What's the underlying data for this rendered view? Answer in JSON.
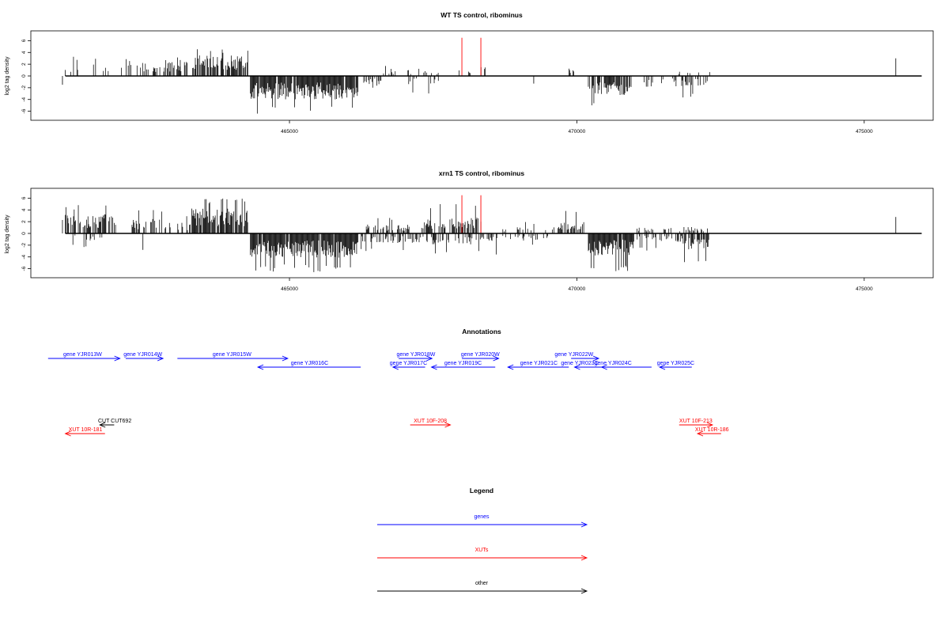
{
  "chart_data": [
    {
      "type": "bar",
      "title": "WT TS control, ribominus",
      "xlabel": "",
      "ylabel": "log2 tag density",
      "xlim": [
        460500,
        476200
      ],
      "ylim": [
        -7,
        7
      ],
      "x_ticks": [
        465000,
        470000,
        475000
      ],
      "x_tick_labels": [
        "465000",
        "470000",
        "475000"
      ],
      "y_ticks": [
        6,
        4,
        2,
        0,
        -2,
        -4,
        -6
      ],
      "y_tick_labels": [
        "6",
        "4",
        "2",
        "0",
        "-2",
        "-4",
        "-6"
      ],
      "line_span": [
        461100,
        476000
      ],
      "red_markers": [
        {
          "x": 468000,
          "value": 6.5
        },
        {
          "x": 468330,
          "value": 6.5
        }
      ],
      "signal_segments": [
        {
          "start": 461050,
          "end": 461650,
          "strand": "+",
          "mean": 2.0,
          "max": 3.3,
          "density": 0.22
        },
        {
          "start": 461750,
          "end": 462250,
          "strand": "+",
          "mean": 1.6,
          "max": 3.0,
          "density": 0.14
        },
        {
          "start": 462300,
          "end": 462800,
          "strand": "+",
          "mean": 1.9,
          "max": 3.3,
          "density": 0.24
        },
        {
          "start": 462800,
          "end": 463350,
          "strand": "+",
          "mean": 2.1,
          "max": 3.2,
          "density": 0.5
        },
        {
          "start": 463350,
          "end": 464280,
          "strand": "+",
          "mean": 2.8,
          "max": 4.7,
          "density": 0.75
        },
        {
          "start": 464320,
          "end": 466200,
          "strand": "-",
          "mean": 3.2,
          "max": 6.5,
          "density": 0.95
        },
        {
          "start": 466280,
          "end": 466600,
          "strand": "-",
          "mean": 1.2,
          "max": 2.0,
          "density": 0.4
        },
        {
          "start": 466600,
          "end": 466850,
          "strand": "+",
          "mean": 1.0,
          "max": 1.8,
          "density": 0.3
        },
        {
          "start": 467050,
          "end": 467700,
          "strand": "-",
          "mean": 1.2,
          "max": 3.0,
          "density": 0.2
        },
        {
          "start": 467000,
          "end": 467600,
          "strand": "+",
          "mean": 0.8,
          "max": 1.5,
          "density": 0.15
        },
        {
          "start": 467950,
          "end": 468450,
          "strand": "+",
          "mean": 1.2,
          "max": 2.2,
          "density": 0.15
        },
        {
          "start": 469850,
          "end": 470000,
          "strand": "+",
          "mean": 1.2,
          "max": 2.4,
          "density": 0.4
        },
        {
          "start": 470200,
          "end": 470950,
          "strand": "-",
          "mean": 2.6,
          "max": 5.8,
          "density": 0.7
        },
        {
          "start": 471100,
          "end": 471350,
          "strand": "-",
          "mean": 1.5,
          "max": 3.5,
          "density": 0.4
        },
        {
          "start": 471450,
          "end": 471750,
          "strand": "-",
          "mean": 1.0,
          "max": 2.0,
          "density": 0.3
        },
        {
          "start": 471800,
          "end": 472300,
          "strand": "-",
          "mean": 1.4,
          "max": 3.8,
          "density": 0.4
        },
        {
          "start": 471750,
          "end": 472350,
          "strand": "+",
          "mean": 0.6,
          "max": 1.6,
          "density": 0.15
        }
      ],
      "single_bars": [
        {
          "x": 461050,
          "value": -1.5
        },
        {
          "x": 466670,
          "value": 1.7
        },
        {
          "x": 469250,
          "value": -1.3
        },
        {
          "x": 475550,
          "value": 3.0
        }
      ]
    },
    {
      "type": "bar",
      "title": "xrn1 TS control, ribominus",
      "xlabel": "",
      "ylabel": "log2 tag density",
      "xlim": [
        460500,
        476200
      ],
      "ylim": [
        -7,
        7
      ],
      "x_ticks": [
        465000,
        470000,
        475000
      ],
      "x_tick_labels": [
        "465000",
        "470000",
        "475000"
      ],
      "y_ticks": [
        6,
        4,
        2,
        0,
        -2,
        -4,
        -6
      ],
      "y_tick_labels": [
        "6",
        "4",
        "2",
        "0",
        "-2",
        "-4",
        "-6"
      ],
      "line_span": [
        461100,
        476000
      ],
      "red_markers": [
        {
          "x": 468000,
          "value": 6.5
        },
        {
          "x": 468330,
          "value": 6.5
        }
      ],
      "signal_segments": [
        {
          "start": 461050,
          "end": 462000,
          "strand": "+",
          "mean": 2.6,
          "max": 4.9,
          "density": 0.6
        },
        {
          "start": 461100,
          "end": 461800,
          "strand": "-",
          "mean": 1.0,
          "max": 2.4,
          "density": 0.2
        },
        {
          "start": 462200,
          "end": 462900,
          "strand": "+",
          "mean": 2.0,
          "max": 4.0,
          "density": 0.4
        },
        {
          "start": 462900,
          "end": 463300,
          "strand": "+",
          "mean": 1.5,
          "max": 3.0,
          "density": 0.3
        },
        {
          "start": 463300,
          "end": 464280,
          "strand": "+",
          "mean": 3.4,
          "max": 6.4,
          "density": 0.85
        },
        {
          "start": 464320,
          "end": 466200,
          "strand": "-",
          "mean": 3.3,
          "max": 6.6,
          "density": 0.95
        },
        {
          "start": 466200,
          "end": 467300,
          "strand": "-",
          "mean": 1.3,
          "max": 3.0,
          "density": 0.4
        },
        {
          "start": 466300,
          "end": 467100,
          "strand": "+",
          "mean": 1.2,
          "max": 2.8,
          "density": 0.4
        },
        {
          "start": 467300,
          "end": 468350,
          "strand": "+",
          "mean": 2.2,
          "max": 5.0,
          "density": 0.5
        },
        {
          "start": 467300,
          "end": 468700,
          "strand": "-",
          "mean": 1.5,
          "max": 3.6,
          "density": 0.4
        },
        {
          "start": 468700,
          "end": 469500,
          "strand": "-",
          "mean": 1.0,
          "max": 2.2,
          "density": 0.3
        },
        {
          "start": 468700,
          "end": 469700,
          "strand": "+",
          "mean": 0.9,
          "max": 2.0,
          "density": 0.25
        },
        {
          "start": 469700,
          "end": 470150,
          "strand": "+",
          "mean": 1.6,
          "max": 4.4,
          "density": 0.5
        },
        {
          "start": 470200,
          "end": 471000,
          "strand": "-",
          "mean": 3.0,
          "max": 6.8,
          "density": 0.9
        },
        {
          "start": 471050,
          "end": 471850,
          "strand": "-",
          "mean": 1.2,
          "max": 3.0,
          "density": 0.4
        },
        {
          "start": 471000,
          "end": 472300,
          "strand": "+",
          "mean": 0.9,
          "max": 2.6,
          "density": 0.25
        },
        {
          "start": 471850,
          "end": 472300,
          "strand": "-",
          "mean": 2.2,
          "max": 5.0,
          "density": 0.8
        }
      ],
      "single_bars": [
        {
          "x": 462450,
          "value": -2.8
        },
        {
          "x": 475550,
          "value": 2.8
        }
      ]
    }
  ],
  "annotations": {
    "title": "Annotations",
    "xlim": [
      460500,
      476200
    ],
    "items": [
      {
        "label": "gene YJR013W",
        "start": 460800,
        "end": 462050,
        "strand": "+",
        "row": 1,
        "color": "#0000ff",
        "label_x": 461400
      },
      {
        "label": "gene YJR014W",
        "start": 462150,
        "end": 462800,
        "strand": "+",
        "row": 1,
        "color": "#0000ff",
        "label_x": 462450
      },
      {
        "label": "gene YJR015W",
        "start": 463050,
        "end": 464970,
        "strand": "+",
        "row": 1,
        "color": "#0000ff",
        "label_x": 464000
      },
      {
        "label": "gene YJR016C",
        "start": 464450,
        "end": 466240,
        "strand": "-",
        "row": 2,
        "color": "#0000ff",
        "label_x": 465350
      },
      {
        "label": "gene YJR017C",
        "start": 466800,
        "end": 467360,
        "strand": "-",
        "row": 2,
        "color": "#0000ff",
        "label_x": 467070
      },
      {
        "label": "gene YJR018W",
        "start": 466900,
        "end": 467480,
        "strand": "+",
        "row": 1,
        "color": "#0000ff",
        "label_x": 467200
      },
      {
        "label": "gene YJR019C",
        "start": 467470,
        "end": 468580,
        "strand": "-",
        "row": 2,
        "color": "#0000ff",
        "label_x": 468020
      },
      {
        "label": "gene YJR020W",
        "start": 468000,
        "end": 468640,
        "strand": "+",
        "row": 1,
        "color": "#0000ff",
        "label_x": 468320
      },
      {
        "label": "gene YJR021C",
        "start": 468800,
        "end": 469860,
        "strand": "-",
        "row": 2,
        "color": "#0000ff",
        "label_x": 469340
      },
      {
        "label": "gene YJR022W",
        "start": 469900,
        "end": 470380,
        "strand": "+",
        "row": 1,
        "color": "#0000ff",
        "label_x": 469950
      },
      {
        "label": "gene YJR023C",
        "start": 469960,
        "end": 470430,
        "strand": "-",
        "row": 2,
        "color": "#0000ff",
        "label_x": 470050
      },
      {
        "label": "gene YJR024C",
        "start": 470430,
        "end": 471300,
        "strand": "-",
        "row": 2,
        "color": "#0000ff",
        "label_x": 470630
      },
      {
        "label": "gene YJR025C",
        "start": 471440,
        "end": 472000,
        "strand": "-",
        "row": 2,
        "color": "#0000ff",
        "label_x": 471720
      },
      {
        "label": "CUT CUT692",
        "start": 461700,
        "end": 461950,
        "strand": "-",
        "row": 3,
        "color": "#000000",
        "label_x": 461960
      },
      {
        "label": "XUT 10R-181",
        "start": 461100,
        "end": 461790,
        "strand": "-",
        "row": 4,
        "color": "#ff0000",
        "label_x": 461450
      },
      {
        "label": "XUT 10F-208",
        "start": 467100,
        "end": 467800,
        "strand": "+",
        "row": 3,
        "color": "#ff0000",
        "label_x": 467450
      },
      {
        "label": "XUT 10F-213",
        "start": 471780,
        "end": 472360,
        "strand": "+",
        "row": 3,
        "color": "#ff0000",
        "label_x": 472070
      },
      {
        "label": "XUT 10R-186",
        "start": 472100,
        "end": 472510,
        "strand": "-",
        "row": 4,
        "color": "#ff0000",
        "label_x": 472350
      }
    ]
  },
  "legend": {
    "title": "Legend",
    "items": [
      {
        "label": "genes",
        "color": "#0000ff"
      },
      {
        "label": "XUTs",
        "color": "#ff0000"
      },
      {
        "label": "other",
        "color": "#000000"
      }
    ]
  }
}
